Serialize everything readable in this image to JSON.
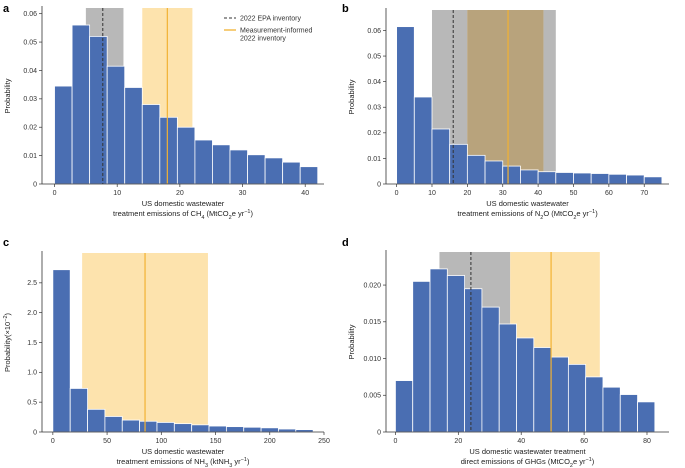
{
  "colors": {
    "bar": "#4a6eb2",
    "epa_band": "#b8b8b8",
    "epa_line": "#333333",
    "mi_band": "#fde3ad",
    "mi_line": "#f2b233",
    "overlap": "#b8a37c"
  },
  "legend": {
    "epa_label": "2022 EPA inventory",
    "mi_label_line1": "Measurement-informed",
    "mi_label_line2": "2022 inventory"
  },
  "chart_data": [
    {
      "panel": "a",
      "type": "bar",
      "subtype": "histogram",
      "ylabel": "Probability",
      "xlabel_line1": "US domestic wastewater",
      "xlabel_line2_parts": [
        "treatment emissions of CH",
        "4",
        " (MtCO",
        "2",
        "e yr",
        "−1",
        ")"
      ],
      "xlim": [
        -2,
        43
      ],
      "ylim": [
        0,
        0.062
      ],
      "xticks": [
        0,
        10,
        20,
        30,
        40
      ],
      "yticks": [
        0,
        0.01,
        0.02,
        0.03,
        0.04,
        0.05,
        0.06
      ],
      "ytick_labels": [
        "0",
        "0.01",
        "0.02",
        "0.03",
        "0.04",
        "0.05",
        "0.06"
      ],
      "bin_edges": [
        0,
        2.8,
        5.6,
        8.4,
        11.2,
        14.0,
        16.8,
        19.6,
        22.4,
        25.2,
        28.0,
        30.8,
        33.6,
        36.4,
        39.2,
        42.0
      ],
      "values": [
        0.0345,
        0.056,
        0.052,
        0.0415,
        0.034,
        0.028,
        0.0235,
        0.02,
        0.0155,
        0.0138,
        0.012,
        0.0103,
        0.0092,
        0.0077,
        0.0061
      ],
      "epa": {
        "low": 5.0,
        "high": 11.0,
        "value": 7.7
      },
      "mi": {
        "low": 14.0,
        "high": 22.0,
        "value": 18.0
      },
      "show_legend": true
    },
    {
      "panel": "b",
      "type": "bar",
      "subtype": "histogram",
      "ylabel": "Probability",
      "xlabel_line1": "US domestic wastewater",
      "xlabel_line2_parts": [
        "treatment emissions of N",
        "2",
        "O (MtCO",
        "2",
        "e yr",
        "−1",
        ")"
      ],
      "xlim": [
        -3,
        77
      ],
      "ylim": [
        0,
        0.068
      ],
      "xticks": [
        0,
        10,
        20,
        30,
        40,
        50,
        60,
        70
      ],
      "yticks": [
        0,
        0.01,
        0.02,
        0.03,
        0.04,
        0.05,
        0.06
      ],
      "ytick_labels": [
        "0",
        "0.01",
        "0.02",
        "0.03",
        "0.04",
        "0.05",
        "0.06"
      ],
      "bin_edges": [
        0,
        5,
        10,
        15,
        20,
        25,
        30,
        35,
        40,
        45,
        50,
        55,
        60,
        65,
        70,
        75
      ],
      "values": [
        0.0615,
        0.034,
        0.0215,
        0.0155,
        0.0112,
        0.009,
        0.007,
        0.0055,
        0.0048,
        0.0045,
        0.0043,
        0.0041,
        0.0038,
        0.0035,
        0.0028
      ],
      "epa": {
        "low": 10.0,
        "high": 45.0,
        "value": 16.0
      },
      "mi": {
        "low": 20.0,
        "high": 41.5,
        "value": 31.5
      },
      "show_legend": false
    },
    {
      "panel": "c",
      "type": "bar",
      "subtype": "histogram",
      "ylabel_parts": [
        "Probability(×10",
        "−2",
        ")"
      ],
      "xlabel_line1": "US domestic wastewater",
      "xlabel_line2_parts": [
        "treatment emissions of NH",
        "3",
        " (ktNH",
        "3",
        " yr",
        "−1",
        ")"
      ],
      "xlim": [
        -10,
        250
      ],
      "ylim": [
        0,
        3.0
      ],
      "xticks": [
        0,
        50,
        100,
        150,
        200,
        250
      ],
      "yticks": [
        0,
        0.5,
        1.0,
        1.5,
        2.0,
        2.5
      ],
      "ytick_labels": [
        "0",
        "0.5",
        "1.0",
        "1.5",
        "2.0",
        "2.5"
      ],
      "bin_edges": [
        0,
        16,
        32,
        48,
        64,
        80,
        96,
        112,
        128,
        144,
        160,
        176,
        192,
        208,
        224,
        240
      ],
      "values": [
        2.72,
        0.73,
        0.38,
        0.26,
        0.2,
        0.18,
        0.16,
        0.14,
        0.12,
        0.1,
        0.09,
        0.08,
        0.07,
        0.05,
        0.04
      ],
      "epa": null,
      "mi": {
        "low": 27.0,
        "high": 143.0,
        "value": 85.0
      },
      "show_legend": false
    },
    {
      "panel": "d",
      "type": "bar",
      "subtype": "histogram",
      "ylabel": "Probability",
      "xlabel_line1": "US domestic wastewater treatment",
      "xlabel_line2_parts": [
        "direct emissions of GHGs (MtCO",
        "2",
        "e yr",
        "−1",
        ")"
      ],
      "xlim": [
        -3,
        87
      ],
      "ylim": [
        0,
        0.0245
      ],
      "xticks": [
        0,
        20,
        40,
        60,
        80
      ],
      "yticks": [
        0,
        0.005,
        0.01,
        0.015,
        0.02
      ],
      "ytick_labels": [
        "0",
        "0.005",
        "0.010",
        "0.015",
        "0.020"
      ],
      "bin_edges": [
        0,
        5.5,
        11,
        16.5,
        22,
        27.5,
        33,
        38.5,
        44,
        49.5,
        55,
        60.5,
        66,
        71.5,
        77,
        82.5
      ],
      "values": [
        0.007,
        0.0205,
        0.0222,
        0.0213,
        0.0195,
        0.017,
        0.0147,
        0.0128,
        0.0115,
        0.0102,
        0.0092,
        0.0075,
        0.0061,
        0.0051,
        0.0041
      ],
      "epa": {
        "low": 14.0,
        "high": 36.5,
        "value": 24.0
      },
      "mi": {
        "low": 36.5,
        "high": 65.0,
        "value": 49.5
      },
      "show_legend": false
    }
  ]
}
